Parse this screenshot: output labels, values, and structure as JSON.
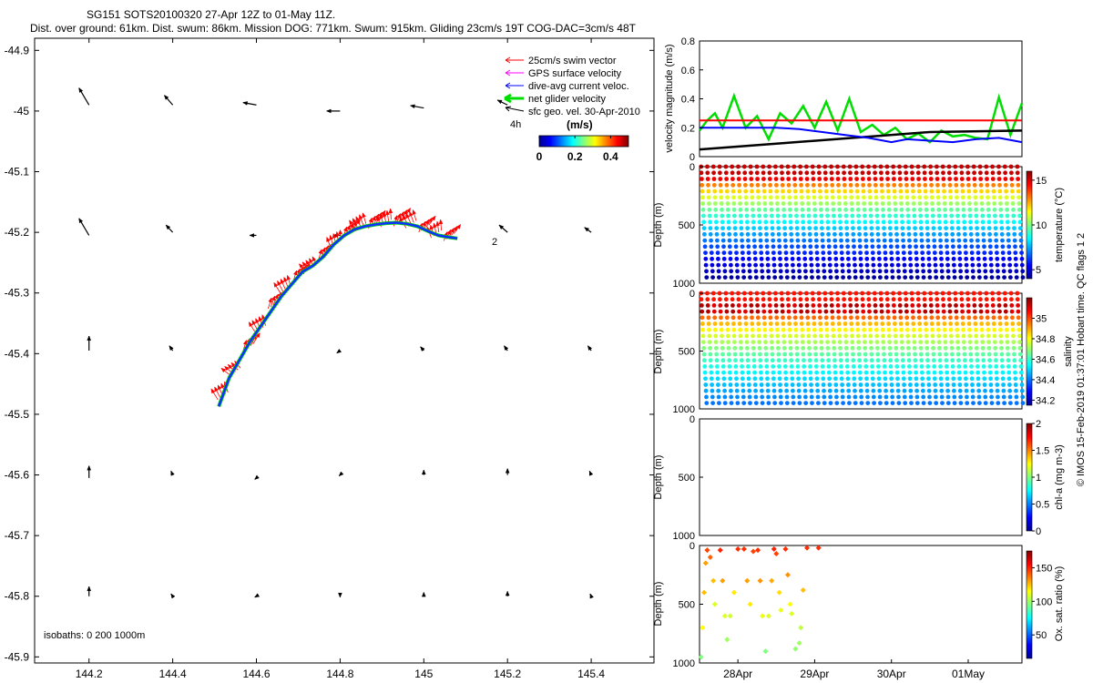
{
  "header": {
    "line1": "SG151 SOTS20100320 27-Apr 12Z to 01-May 11Z.",
    "line2": "Dist. over ground: 61km. Dist. swum: 86km. Mission DOG: 771km. Swum: 915km. Gliding 23cm/s 19T COG-DAC=3cm/s 48T"
  },
  "colors": {
    "swim": "#ff0000",
    "gps": "#ff00ff",
    "dac": "#0000ff",
    "net": "#00dd00",
    "geo": "#000000",
    "axis": "#000000",
    "track": "#1030ff"
  },
  "chart_data": [
    {
      "id": "map",
      "type": "scatter",
      "title": "",
      "xlabel": "",
      "ylabel": "",
      "xlim": [
        144.07,
        145.55
      ],
      "ylim": [
        -45.91,
        -44.88
      ],
      "xticks": [
        "144.2",
        "144.4",
        "144.6",
        "144.8",
        "145",
        "145.2",
        "145.4"
      ],
      "xtick_values": [
        144.2,
        144.4,
        144.6,
        144.8,
        145.0,
        145.2,
        145.4
      ],
      "yticks": [
        "-44.9",
        "-45",
        "-45.1",
        "-45.2",
        "-45.3",
        "-45.4",
        "-45.5",
        "-45.6",
        "-45.7",
        "-45.8",
        "-45.9"
      ],
      "ytick_values": [
        -44.9,
        -45.0,
        -45.1,
        -45.2,
        -45.3,
        -45.4,
        -45.5,
        -45.6,
        -45.7,
        -45.8,
        -45.9
      ],
      "legend": {
        "placement": "top-right",
        "entries": [
          "25cm/s swim vector",
          "GPS surface velocity",
          "dive-avg current veloc.",
          "net glider velocity",
          "sfc geo. vel. 30-Apr-2010"
        ],
        "label_4h": "4h",
        "colorbar_title": "(m/s)",
        "colorbar_ticks": [
          "0",
          "0.2",
          "0.4"
        ],
        "colorbar_range": [
          0,
          0.5
        ]
      },
      "isobaths_label": "isobaths: 0   200  1000m",
      "track_label": "2",
      "track_points": [
        [
          144.51,
          -45.487
        ],
        [
          144.535,
          -45.44
        ],
        [
          144.56,
          -45.41
        ],
        [
          144.585,
          -45.38
        ],
        [
          144.61,
          -45.355
        ],
        [
          144.635,
          -45.33
        ],
        [
          144.66,
          -45.305
        ],
        [
          144.685,
          -45.285
        ],
        [
          144.71,
          -45.265
        ],
        [
          144.735,
          -45.255
        ],
        [
          144.76,
          -45.24
        ],
        [
          144.785,
          -45.22
        ],
        [
          144.81,
          -45.205
        ],
        [
          144.835,
          -45.195
        ],
        [
          144.86,
          -45.19
        ],
        [
          144.885,
          -45.187
        ],
        [
          144.91,
          -45.185
        ],
        [
          144.935,
          -45.184
        ],
        [
          144.96,
          -45.186
        ],
        [
          144.985,
          -45.19
        ],
        [
          145.01,
          -45.198
        ],
        [
          145.035,
          -45.205
        ],
        [
          145.06,
          -45.208
        ],
        [
          145.08,
          -45.21
        ]
      ],
      "swim_vectors": [
        [
          144.52,
          -45.47,
          -0.02,
          0.03
        ],
        [
          144.55,
          -45.43,
          -0.03,
          0.02
        ],
        [
          144.58,
          -45.39,
          0.02,
          0.03
        ],
        [
          144.61,
          -45.36,
          -0.02,
          0.03
        ],
        [
          144.64,
          -45.32,
          0.02,
          0.03
        ],
        [
          144.67,
          -45.295,
          -0.02,
          0.03
        ],
        [
          144.7,
          -45.275,
          0.02,
          0.03
        ],
        [
          144.73,
          -45.258,
          -0.02,
          0.02
        ],
        [
          144.76,
          -45.24,
          0.02,
          0.03
        ],
        [
          144.79,
          -45.22,
          -0.01,
          0.03
        ],
        [
          144.82,
          -45.2,
          0.02,
          0.025
        ],
        [
          144.85,
          -45.192,
          -0.02,
          0.03
        ],
        [
          144.88,
          -45.188,
          0.02,
          0.03
        ],
        [
          144.91,
          -45.185,
          -0.01,
          0.03
        ],
        [
          144.94,
          -45.184,
          0.02,
          0.03
        ],
        [
          144.97,
          -45.187,
          -0.02,
          0.03
        ],
        [
          145.0,
          -45.194,
          0.02,
          0.025
        ],
        [
          145.03,
          -45.203,
          -0.01,
          0.03
        ],
        [
          145.06,
          -45.208,
          0.02,
          0.025
        ]
      ],
      "geo_vectors": [
        [
          144.2,
          -44.99,
          -0.03,
          0.035
        ],
        [
          144.4,
          -44.99,
          -0.025,
          0.02
        ],
        [
          144.6,
          -44.99,
          -0.04,
          0.005
        ],
        [
          144.8,
          -45.0,
          -0.04,
          0.0
        ],
        [
          145.0,
          -44.995,
          -0.04,
          0.005
        ],
        [
          145.2,
          -44.99,
          -0.03,
          0.01
        ],
        [
          144.2,
          -45.205,
          -0.03,
          0.035
        ],
        [
          144.4,
          -45.2,
          -0.02,
          0.015
        ],
        [
          144.6,
          -45.205,
          -0.02,
          0.0
        ],
        [
          144.8,
          -45.205,
          -0.02,
          0.0
        ],
        [
          145.2,
          -45.2,
          -0.025,
          0.015
        ],
        [
          145.4,
          -45.2,
          -0.02,
          0.01
        ],
        [
          144.2,
          -45.395,
          0.0,
          0.03
        ],
        [
          144.4,
          -45.395,
          -0.01,
          0.01
        ],
        [
          144.8,
          -45.395,
          -0.01,
          -0.005
        ],
        [
          145.0,
          -45.395,
          -0.01,
          0.008
        ],
        [
          145.2,
          -45.395,
          -0.01,
          0.01
        ],
        [
          145.4,
          -45.395,
          -0.01,
          0.01
        ],
        [
          144.2,
          -45.605,
          0.0,
          0.025
        ],
        [
          144.4,
          -45.6,
          -0.005,
          0.008
        ],
        [
          144.6,
          -45.605,
          -0.005,
          -0.003
        ],
        [
          144.8,
          -45.6,
          -0.003,
          -0.002
        ],
        [
          145.0,
          -45.6,
          0.0,
          0.01
        ],
        [
          145.2,
          -45.6,
          0.0,
          0.013
        ],
        [
          145.4,
          -45.6,
          -0.005,
          0.008
        ],
        [
          144.2,
          -45.8,
          0.0,
          0.02
        ],
        [
          144.4,
          -45.8,
          -0.005,
          0.005
        ],
        [
          144.6,
          -45.8,
          -0.005,
          -0.002
        ],
        [
          144.8,
          -45.8,
          0.0,
          -0.002
        ],
        [
          145.0,
          -45.8,
          0.0,
          0.008
        ],
        [
          145.2,
          -45.8,
          0.0,
          0.01
        ],
        [
          145.4,
          -45.8,
          -0.003,
          0.005
        ]
      ]
    },
    {
      "id": "velocity",
      "type": "line",
      "ylabel": "velocity magnitude (m/s)",
      "ylim": [
        0,
        0.8
      ],
      "yticks": [
        "0",
        "0.2",
        "0.4",
        "0.6",
        "0.8"
      ],
      "ytick_values": [
        0,
        0.2,
        0.4,
        0.6,
        0.8
      ],
      "xlim": [
        0,
        4.2
      ],
      "series": [
        {
          "name": "swim speed",
          "color": "#ff0000",
          "x": [
            0,
            4.2
          ],
          "values": [
            0.25,
            0.25
          ]
        },
        {
          "name": "dive-avg current",
          "color": "#0000ff",
          "x": [
            0,
            0.5,
            1.0,
            1.3,
            1.6,
            1.9,
            2.2,
            2.5,
            2.7,
            3.0,
            3.3,
            3.6,
            3.9,
            4.2
          ],
          "values": [
            0.2,
            0.2,
            0.2,
            0.19,
            0.17,
            0.15,
            0.13,
            0.1,
            0.12,
            0.11,
            0.1,
            0.12,
            0.13,
            0.1
          ]
        },
        {
          "name": "geostrophic",
          "color": "#000000",
          "x": [
            0,
            1.0,
            2.0,
            3.0,
            4.2
          ],
          "values": [
            0.05,
            0.09,
            0.13,
            0.17,
            0.18
          ]
        },
        {
          "name": "net glider velocity",
          "color": "#00dd00",
          "x": [
            0,
            0.1,
            0.2,
            0.3,
            0.45,
            0.6,
            0.75,
            0.9,
            1.05,
            1.2,
            1.35,
            1.5,
            1.65,
            1.8,
            1.95,
            2.1,
            2.25,
            2.4,
            2.55,
            2.7,
            2.85,
            3.0,
            3.15,
            3.3,
            3.45,
            3.6,
            3.75,
            3.9,
            4.05,
            4.2
          ],
          "values": [
            0.18,
            0.25,
            0.3,
            0.2,
            0.42,
            0.2,
            0.28,
            0.12,
            0.3,
            0.23,
            0.35,
            0.2,
            0.38,
            0.18,
            0.4,
            0.17,
            0.22,
            0.15,
            0.2,
            0.12,
            0.16,
            0.1,
            0.18,
            0.14,
            0.15,
            0.13,
            0.12,
            0.41,
            0.15,
            0.37
          ]
        }
      ]
    },
    {
      "id": "temperature",
      "type": "scatter",
      "ylabel": "Depth (m)",
      "clabel": "temperature (°C)",
      "ylim": [
        1000,
        0
      ],
      "yticks": [
        "0",
        "500",
        "1000"
      ],
      "ytick_values": [
        0,
        500,
        1000
      ],
      "clim": [
        4,
        16
      ],
      "cticks": [
        "5",
        "10",
        "15"
      ],
      "ctick_values": [
        5,
        10,
        15
      ],
      "dives": 26,
      "max_depth": 950,
      "profile": {
        "surface_value": 15.2,
        "deep_value": 4.2,
        "mixed_layer_m": 100
      }
    },
    {
      "id": "salinity",
      "type": "scatter",
      "ylabel": "Depth (m)",
      "clabel": "salinity",
      "ylim": [
        1000,
        0
      ],
      "yticks": [
        "0",
        "500",
        "1000"
      ],
      "ytick_values": [
        0,
        500,
        1000
      ],
      "clim": [
        34.15,
        35.2
      ],
      "cticks": [
        "34.2",
        "34.4",
        "34.6",
        "34.8",
        "35"
      ],
      "ctick_values": [
        34.2,
        34.4,
        34.6,
        34.8,
        35.0
      ],
      "dives": 26,
      "max_depth": 950,
      "profile": {
        "surface_value": 35.05,
        "subsurface_max": 35.15,
        "deep_value": 34.4
      }
    },
    {
      "id": "chla",
      "type": "scatter",
      "ylabel": "Depth (m)",
      "clabel": "chl-a (mg m-3)",
      "ylim": [
        1000,
        0
      ],
      "yticks": [
        "0",
        "500",
        "1000"
      ],
      "ytick_values": [
        0,
        500,
        1000
      ],
      "clim": [
        0,
        2
      ],
      "cticks": [
        "0",
        "0.5",
        "1",
        "1.5",
        "2"
      ],
      "ctick_values": [
        0,
        0.5,
        1,
        1.5,
        2
      ],
      "points": []
    },
    {
      "id": "oxygen",
      "type": "scatter",
      "ylabel": "Depth (m)",
      "clabel": "Ox. sat. ratio (%)",
      "ylim": [
        1000,
        0
      ],
      "yticks": [
        "0",
        "500",
        "1000"
      ],
      "ytick_values": [
        0,
        500,
        1000
      ],
      "clim": [
        15,
        175
      ],
      "cticks": [
        "50",
        "100",
        "150"
      ],
      "ctick_values": [
        50,
        100,
        150
      ],
      "xticks": [
        "28Apr",
        "29Apr",
        "30Apr",
        "01May"
      ],
      "xtick_values": [
        0.5,
        1.5,
        2.5,
        3.5
      ],
      "xlim": [
        0,
        4.2
      ],
      "points": [
        [
          0.02,
          950,
          95
        ],
        [
          0.04,
          700,
          115
        ],
        [
          0.06,
          400,
          125
        ],
        [
          0.08,
          150,
          130
        ],
        [
          0.1,
          40,
          145
        ],
        [
          0.14,
          100,
          140
        ],
        [
          0.18,
          300,
          125
        ],
        [
          0.2,
          500,
          110
        ],
        [
          0.27,
          40,
          150
        ],
        [
          0.3,
          300,
          130
        ],
        [
          0.33,
          600,
          110
        ],
        [
          0.36,
          800,
          100
        ],
        [
          0.4,
          600,
          108
        ],
        [
          0.45,
          400,
          118
        ],
        [
          0.5,
          30,
          148
        ],
        [
          0.58,
          30,
          148
        ],
        [
          0.62,
          300,
          130
        ],
        [
          0.66,
          500,
          118
        ],
        [
          0.7,
          50,
          145
        ],
        [
          0.76,
          40,
          148
        ],
        [
          0.79,
          300,
          132
        ],
        [
          0.82,
          600,
          112
        ],
        [
          0.86,
          900,
          95
        ],
        [
          0.9,
          600,
          110
        ],
        [
          0.94,
          300,
          128
        ],
        [
          0.97,
          30,
          150
        ],
        [
          1.0,
          70,
          145
        ],
        [
          1.04,
          400,
          120
        ],
        [
          1.06,
          550,
          112
        ],
        [
          1.12,
          30,
          148
        ],
        [
          1.15,
          250,
          132
        ],
        [
          1.18,
          500,
          115
        ],
        [
          1.2,
          580,
          110
        ],
        [
          1.25,
          880,
          98
        ],
        [
          1.3,
          830,
          100
        ],
        [
          1.32,
          700,
          105
        ],
        [
          1.35,
          380,
          125
        ],
        [
          1.4,
          20,
          148
        ],
        [
          1.55,
          20,
          148
        ]
      ]
    }
  ],
  "watermark": "© IMOS 15-Feb-2019 01:37:01 Hobart time. QC flags 1  2"
}
